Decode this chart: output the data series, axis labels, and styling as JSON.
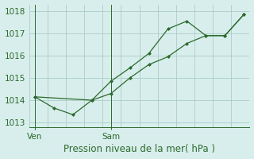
{
  "line1_x": [
    0,
    1,
    2,
    3,
    4,
    5,
    6,
    7,
    8,
    9,
    10,
    11
  ],
  "line1_y": [
    1014.15,
    1013.65,
    1013.35,
    1014.0,
    1014.85,
    1015.45,
    1016.1,
    1017.2,
    1017.55,
    1016.9,
    1016.9,
    1017.85
  ],
  "line2_x": [
    0,
    3,
    4,
    5,
    6,
    7,
    8,
    9,
    10,
    11
  ],
  "line2_y": [
    1014.15,
    1014.0,
    1014.3,
    1015.0,
    1015.6,
    1015.95,
    1016.55,
    1016.9,
    1016.9,
    1017.85
  ],
  "color": "#2d6a2d",
  "bg_color": "#d8eeec",
  "grid_color": "#aacdc8",
  "xlabel": "Pression niveau de la mer( hPa )",
  "xtick_labels": [
    "Ven",
    "Sam"
  ],
  "xtick_positions": [
    0,
    4
  ],
  "ylim": [
    1012.8,
    1018.3
  ],
  "yticks": [
    1013,
    1014,
    1015,
    1016,
    1017,
    1018
  ],
  "vline_positions": [
    0,
    4
  ],
  "label_fontsize": 8.5,
  "tick_fontsize": 7.5,
  "xlim": [
    -0.3,
    11.3
  ]
}
